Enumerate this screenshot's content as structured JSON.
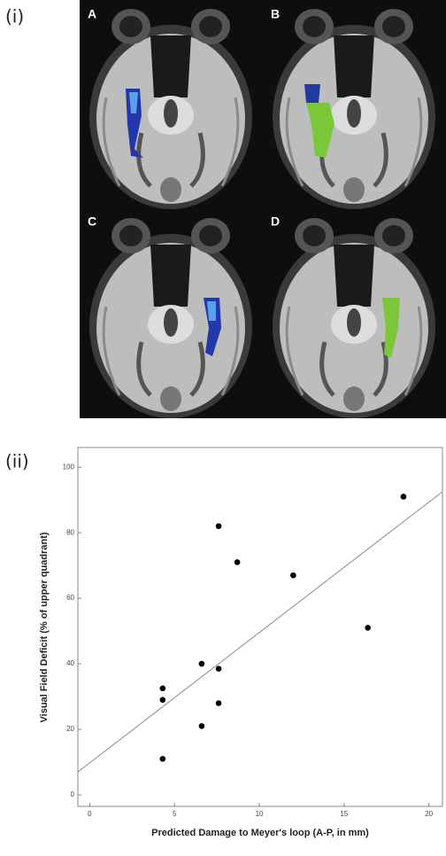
{
  "figure": {
    "part_labels": [
      "(i)",
      "(ii)"
    ],
    "panel_labels": [
      "A",
      "B",
      "C",
      "D"
    ]
  },
  "chart_data": {
    "type": "scatter",
    "x_label": "Predicted Damage to Meyer's loop (A-P, in mm)",
    "y_label": "Visual Field Deficit (% of upper quadrant)",
    "x": [
      18.5,
      7.6,
      8.7,
      12.0,
      16.4,
      6.6,
      7.6,
      4.3,
      4.3,
      7.6,
      6.6,
      4.3
    ],
    "values": [
      91,
      82,
      71,
      67,
      51,
      40,
      38.5,
      32.5,
      29,
      28,
      21,
      11
    ],
    "color": "#000000",
    "trend_line": {
      "x": [
        -0.7,
        20.8
      ],
      "y": [
        7,
        92.5
      ],
      "color": "#9a9a9a"
    },
    "xlim": [
      -0.7,
      20.8
    ],
    "ylim": [
      -3.5,
      106
    ],
    "xticks": [
      0,
      5,
      10,
      15,
      20
    ],
    "yticks": [
      0,
      20,
      40,
      60,
      80,
      100
    ]
  }
}
